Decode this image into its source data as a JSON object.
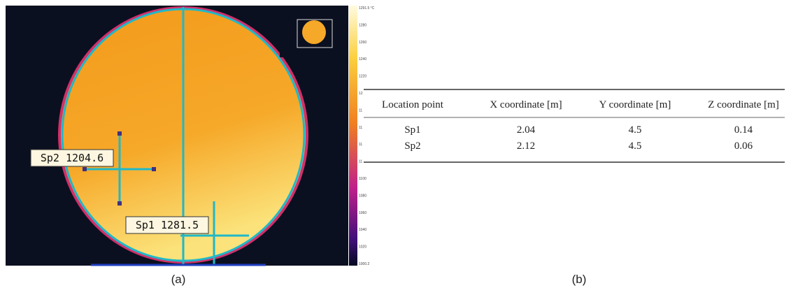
{
  "figure": {
    "panel_a": {
      "caption": "(a)",
      "spots": [
        "Sp2 1204.6",
        "Sp1 1281.5"
      ],
      "colorbar_labels": [
        "1291.5 °C",
        "1280",
        "1260",
        "1240",
        "1220",
        "12",
        "11",
        "11",
        "11",
        "11",
        "1100",
        "1080",
        "1060",
        "1040",
        "1020",
        "1000.2"
      ]
    },
    "panel_b": {
      "caption": "(b)",
      "table": {
        "header": [
          "Location point",
          "X coordinate [m]",
          "Y coordinate [m]",
          "Z coordinate [m]"
        ],
        "rows": [
          [
            "Sp1",
            "2.04",
            "4.5",
            "0.14"
          ],
          [
            "Sp2",
            "2.12",
            "4.5",
            "0.06"
          ]
        ]
      }
    }
  }
}
